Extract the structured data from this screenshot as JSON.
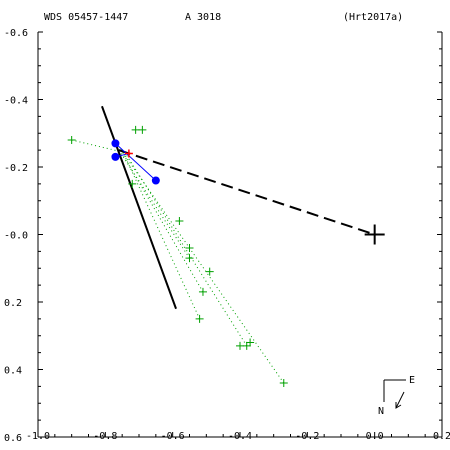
{
  "header": {
    "id_label": "WDS 05457-1447",
    "component_label": "A  3018",
    "reference_label": "(Hrt2017a)"
  },
  "compass": {
    "north_label": "N",
    "east_label": "E"
  },
  "colors": {
    "axes": "#000000",
    "observations": "#00a000",
    "measured": "#0000ff",
    "residual": "#0000ff",
    "predicted": "#ff0000",
    "orbit_line": "#000000"
  },
  "chart_data": {
    "type": "scatter",
    "title": "",
    "xlabel": "",
    "ylabel": "",
    "xlim": [
      -1.0,
      0.2
    ],
    "ylim": [
      -0.6,
      0.6
    ],
    "y_inverted": true,
    "x_ticks": [
      -1.0,
      -0.8,
      -0.6,
      -0.4,
      -0.2,
      0.0,
      0.2
    ],
    "x_tick_labels": [
      "-1.0",
      "-0.8",
      "-0.6",
      "-0.4",
      "-0.2",
      "0.0",
      "0.2"
    ],
    "y_ticks": [
      -0.6,
      -0.4,
      -0.2,
      0.0,
      0.2,
      0.4,
      0.6
    ],
    "y_tick_labels": [
      "-0.6",
      "-0.4",
      "-0.2",
      "-0.0",
      "0.2",
      "0.4",
      "0.6"
    ],
    "primary_star": [
      0.0,
      0.0
    ],
    "historical_observations": [
      [
        -0.27,
        0.44
      ],
      [
        -0.4,
        0.33
      ],
      [
        -0.37,
        0.32
      ],
      [
        -0.38,
        0.33
      ],
      [
        -0.52,
        0.25
      ],
      [
        -0.51,
        0.17
      ],
      [
        -0.49,
        0.11
      ],
      [
        -0.55,
        0.07
      ],
      [
        -0.55,
        0.04
      ],
      [
        -0.58,
        -0.04
      ],
      [
        -0.72,
        -0.15
      ],
      [
        -0.71,
        -0.31
      ],
      [
        -0.69,
        -0.31
      ],
      [
        -0.9,
        -0.28
      ]
    ],
    "observation_links": [
      [
        [
          -0.27,
          0.44
        ],
        [
          -0.76,
          -0.26
        ]
      ],
      [
        [
          -0.38,
          0.33
        ],
        [
          -0.74,
          -0.24
        ]
      ],
      [
        [
          -0.52,
          0.25
        ],
        [
          -0.75,
          -0.25
        ]
      ],
      [
        [
          -0.51,
          0.17
        ],
        [
          -0.75,
          -0.24
        ]
      ],
      [
        [
          -0.55,
          0.07
        ],
        [
          -0.76,
          -0.25
        ]
      ],
      [
        [
          -0.9,
          -0.28
        ],
        [
          -0.73,
          -0.24
        ]
      ]
    ],
    "measured_points": [
      [
        -0.77,
        -0.23
      ],
      [
        -0.77,
        -0.27
      ],
      [
        -0.65,
        -0.16
      ]
    ],
    "residual_links": [
      [
        [
          -0.77,
          -0.27
        ],
        [
          -0.65,
          -0.16
        ]
      ],
      [
        [
          -0.77,
          -0.23
        ],
        [
          -0.73,
          -0.24
        ]
      ]
    ],
    "predicted_point": [
      -0.73,
      -0.24
    ],
    "node_line": [
      [
        -0.81,
        -0.38
      ],
      [
        -0.59,
        0.22
      ]
    ],
    "periastron_line": [
      [
        -0.76,
        -0.25
      ],
      [
        0.0,
        0.0
      ]
    ]
  }
}
